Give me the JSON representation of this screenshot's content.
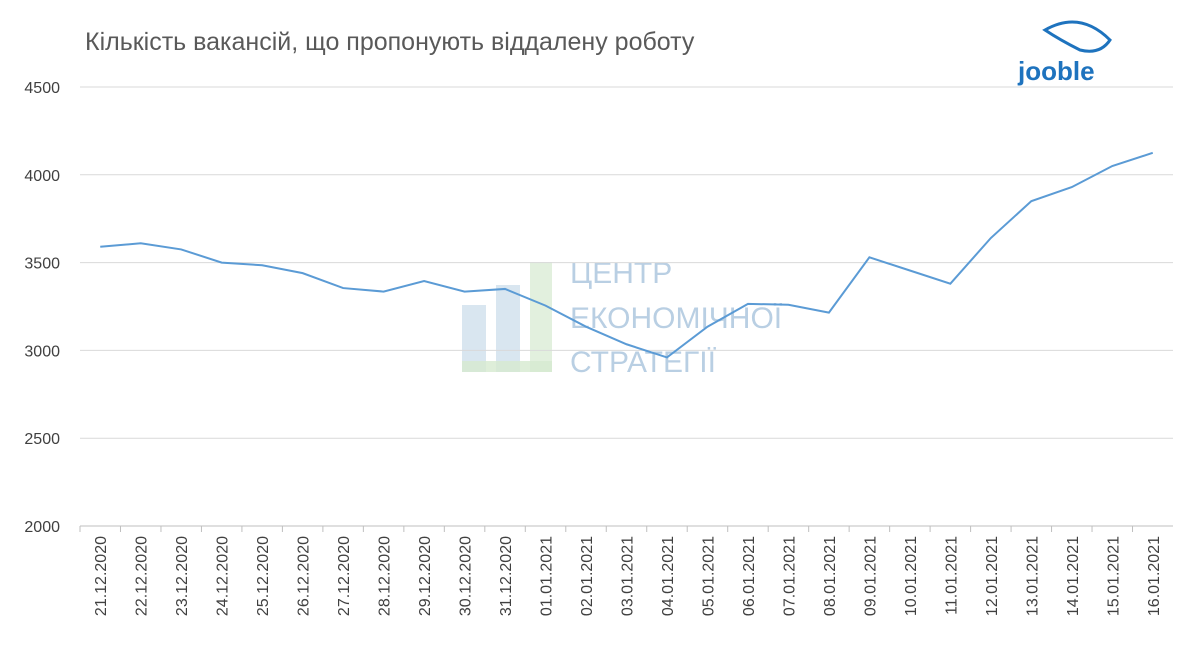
{
  "chart_data": {
    "type": "line",
    "title": "Кількість вакансій, що пропонують віддалену роботу",
    "categories": [
      "21.12.2020",
      "22.12.2020",
      "23.12.2020",
      "24.12.2020",
      "25.12.2020",
      "26.12.2020",
      "27.12.2020",
      "28.12.2020",
      "29.12.2020",
      "30.12.2020",
      "31.12.2020",
      "01.01.2021",
      "02.01.2021",
      "03.01.2021",
      "04.01.2021",
      "05.01.2021",
      "06.01.2021",
      "07.01.2021",
      "08.01.2021",
      "09.01.2021",
      "10.01.2021",
      "11.01.2021",
      "12.01.2021",
      "13.01.2021",
      "14.01.2021",
      "15.01.2021",
      "16.01.2021"
    ],
    "values": [
      3590,
      3610,
      3575,
      3500,
      3485,
      3440,
      3355,
      3335,
      3395,
      3335,
      3350,
      3255,
      3135,
      3035,
      2960,
      3135,
      3265,
      3260,
      3215,
      3530,
      3455,
      3380,
      3640,
      3850,
      3930,
      4050,
      4125
    ],
    "color": "#5b9bd5",
    "ylim": [
      2000,
      4500
    ],
    "yticks": [
      2000,
      2500,
      3000,
      3500,
      4000,
      4500
    ],
    "grid": true
  },
  "watermark": [
    "ЦЕНТР",
    "ЕКОНОМІЧНОЇ",
    "СТРАТЕГІЇ"
  ],
  "logo": "jooble"
}
